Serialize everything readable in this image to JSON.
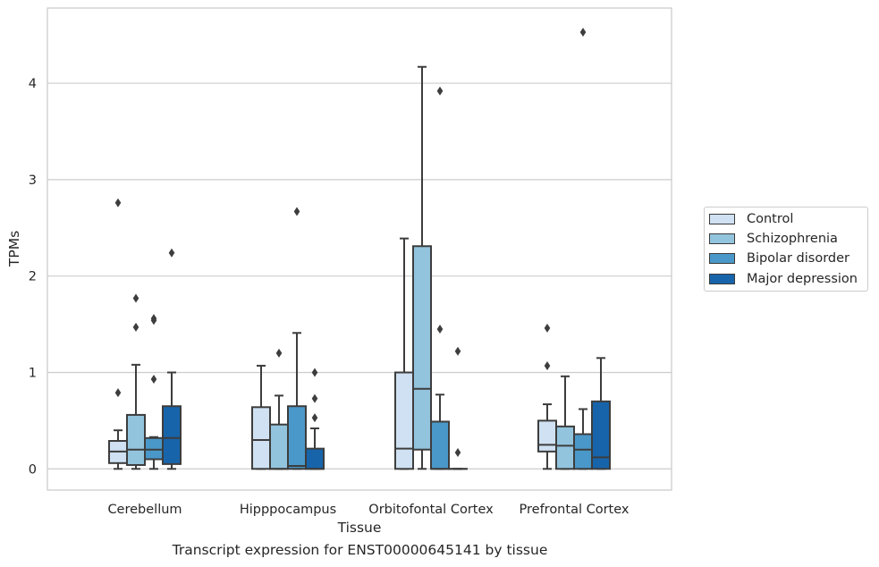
{
  "caption": "Transcript expression for ENST00000645141 by tissue",
  "colors": {
    "Control": "#cfe1f2",
    "Schizophrenia": "#93c4de",
    "Bipolar disorder": "#4a98c9",
    "Major depression": "#1764ab"
  },
  "chart_data": {
    "type": "box",
    "xlabel": "Tissue",
    "ylabel": "TPMs",
    "ylim": [
      -0.22,
      4.78
    ],
    "yticks": [
      0,
      1,
      2,
      3,
      4
    ],
    "grid": "horizontal",
    "legend_position": "right",
    "categories": [
      "Cerebellum",
      "Hipppocampus",
      "Orbitofontal Cortex",
      "Prefrontal Cortex"
    ],
    "series": [
      {
        "name": "Control",
        "boxes": [
          {
            "whislo": 0.0,
            "q1": 0.06,
            "med": 0.18,
            "q3": 0.29,
            "whishi": 0.4,
            "fliers": [
              0.79,
              2.76
            ]
          },
          {
            "whislo": 0.0,
            "q1": 0.0,
            "med": 0.3,
            "q3": 0.64,
            "whishi": 1.07,
            "fliers": []
          },
          {
            "whislo": 0.0,
            "q1": 0.0,
            "med": 0.21,
            "q3": 1.0,
            "whishi": 2.39,
            "fliers": []
          },
          {
            "whislo": 0.0,
            "q1": 0.18,
            "med": 0.25,
            "q3": 0.5,
            "whishi": 0.67,
            "fliers": [
              1.07,
              1.46
            ]
          }
        ]
      },
      {
        "name": "Schizophrenia",
        "boxes": [
          {
            "whislo": 0.0,
            "q1": 0.04,
            "med": 0.2,
            "q3": 0.56,
            "whishi": 1.08,
            "fliers": [
              1.47,
              1.77
            ]
          },
          {
            "whislo": 0.0,
            "q1": 0.0,
            "med": 0.0,
            "q3": 0.46,
            "whishi": 0.76,
            "fliers": [
              1.2
            ]
          },
          {
            "whislo": 0.0,
            "q1": 0.2,
            "med": 0.83,
            "q3": 2.31,
            "whishi": 4.17,
            "fliers": []
          },
          {
            "whislo": 0.0,
            "q1": 0.0,
            "med": 0.24,
            "q3": 0.44,
            "whishi": 0.96,
            "fliers": []
          }
        ]
      },
      {
        "name": "Bipolar disorder",
        "boxes": [
          {
            "whislo": 0.0,
            "q1": 0.1,
            "med": 0.2,
            "q3": 0.32,
            "whishi": 0.33,
            "fliers": [
              0.93,
              1.54,
              1.56
            ]
          },
          {
            "whislo": 0.0,
            "q1": 0.0,
            "med": 0.03,
            "q3": 0.65,
            "whishi": 1.41,
            "fliers": [
              2.67
            ]
          },
          {
            "whislo": 0.0,
            "q1": 0.0,
            "med": 0.0,
            "q3": 0.49,
            "whishi": 0.77,
            "fliers": [
              1.45,
              3.92
            ]
          },
          {
            "whislo": 0.0,
            "q1": 0.0,
            "med": 0.2,
            "q3": 0.36,
            "whishi": 0.62,
            "fliers": [
              4.53
            ]
          }
        ]
      },
      {
        "name": "Major depression",
        "boxes": [
          {
            "whislo": 0.0,
            "q1": 0.05,
            "med": 0.32,
            "q3": 0.65,
            "whishi": 1.0,
            "fliers": [
              2.24
            ]
          },
          {
            "whislo": 0.0,
            "q1": 0.0,
            "med": 0.0,
            "q3": 0.21,
            "whishi": 0.42,
            "fliers": [
              0.53,
              0.73,
              1.0
            ]
          },
          {
            "whislo": 0.0,
            "q1": 0.0,
            "med": 0.0,
            "q3": 0.0,
            "whishi": 0.0,
            "fliers": [
              0.17,
              1.22
            ]
          },
          {
            "whislo": 0.0,
            "q1": 0.0,
            "med": 0.12,
            "q3": 0.7,
            "whishi": 1.15,
            "fliers": []
          }
        ]
      }
    ]
  }
}
